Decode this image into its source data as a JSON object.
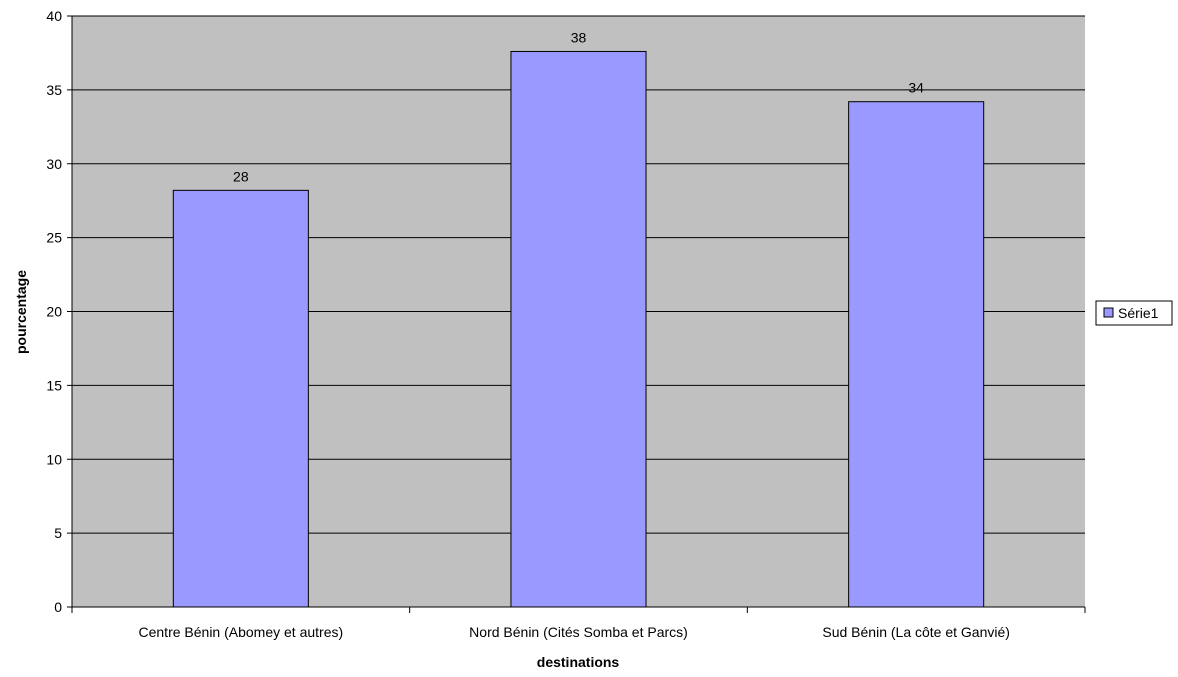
{
  "chart_data": {
    "type": "bar",
    "categories": [
      "Centre Bénin (Abomey et autres)",
      "Nord Bénin (Cités Somba et Parcs)",
      "Sud Bénin (La côte et Ganvié)"
    ],
    "series": [
      {
        "name": "Série1",
        "values": [
          28.2,
          37.6,
          34.2
        ],
        "data_labels": [
          "28",
          "38",
          "34"
        ],
        "color": "#9999ff"
      }
    ],
    "xlabel": "destinations",
    "ylabel": "pourcentage",
    "ylim": [
      0,
      40
    ],
    "yticks": [
      "0",
      "5",
      "10",
      "15",
      "20",
      "25",
      "30",
      "35",
      "40"
    ],
    "grid": true,
    "legend_position": "right",
    "plot_background": "#c0c0c0",
    "bar_border_color": "#000000"
  }
}
